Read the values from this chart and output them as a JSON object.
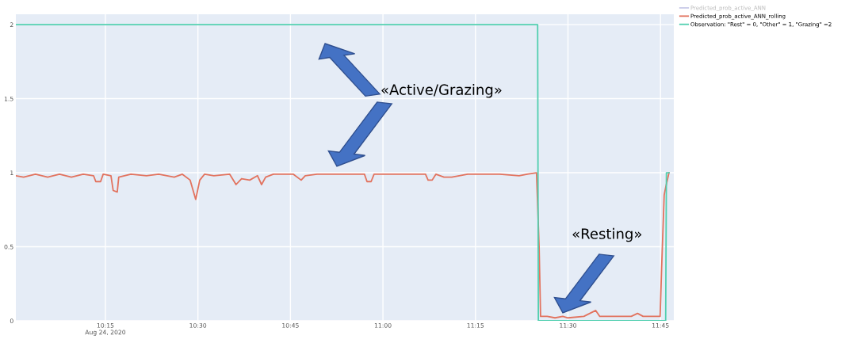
{
  "chart_data": {
    "type": "line",
    "xlim": [
      10.008,
      11.786
    ],
    "ylim": [
      0,
      2.07
    ],
    "xticks": [
      {
        "value": 10.25,
        "label": "10:15\nAug 24, 2020"
      },
      {
        "value": 10.5,
        "label": "10:30"
      },
      {
        "value": 10.75,
        "label": "10:45"
      },
      {
        "value": 11.0,
        "label": "11:00"
      },
      {
        "value": 11.25,
        "label": "11:15"
      },
      {
        "value": 11.5,
        "label": "11:30"
      },
      {
        "value": 11.75,
        "label": "11:45"
      }
    ],
    "yticks": [
      0,
      0.5,
      1,
      1.5,
      2
    ],
    "grid": true,
    "legend": "top right",
    "series": [
      {
        "name": "Predicted_prob_active_ANN",
        "color": "#c9cbe8"
      },
      {
        "name": "Predicted_prob_active_ANN_rolling",
        "color": "#e2735f",
        "x": [
          10.008,
          10.029,
          10.061,
          10.094,
          10.126,
          10.158,
          10.19,
          10.218,
          10.224,
          10.237,
          10.244,
          10.265,
          10.271,
          10.282,
          10.286,
          10.319,
          10.361,
          10.394,
          10.436,
          10.458,
          10.479,
          10.494,
          10.505,
          10.518,
          10.543,
          10.586,
          10.603,
          10.618,
          10.64,
          10.661,
          10.672,
          10.683,
          10.704,
          10.758,
          10.779,
          10.79,
          10.822,
          10.886,
          10.95,
          10.957,
          10.968,
          10.976,
          11.036,
          11.115,
          11.122,
          11.133,
          11.143,
          11.165,
          11.186,
          11.229,
          11.315,
          11.368,
          11.39,
          11.415,
          11.422,
          11.426,
          11.444,
          11.465,
          11.486,
          11.5,
          11.543,
          11.575,
          11.586,
          11.629,
          11.671,
          11.688,
          11.703,
          11.736,
          11.749,
          11.753,
          11.76,
          11.764,
          11.773
        ],
        "values": [
          0.98,
          0.97,
          0.99,
          0.97,
          0.99,
          0.97,
          0.99,
          0.98,
          0.94,
          0.94,
          0.99,
          0.98,
          0.88,
          0.87,
          0.97,
          0.99,
          0.98,
          0.99,
          0.97,
          0.99,
          0.95,
          0.82,
          0.95,
          0.99,
          0.98,
          0.99,
          0.92,
          0.96,
          0.95,
          0.98,
          0.92,
          0.97,
          0.99,
          0.99,
          0.95,
          0.98,
          0.99,
          0.99,
          0.99,
          0.94,
          0.94,
          0.99,
          0.99,
          0.99,
          0.95,
          0.95,
          0.99,
          0.97,
          0.97,
          0.99,
          0.99,
          0.98,
          0.99,
          1.0,
          0.5,
          0.03,
          0.03,
          0.02,
          0.03,
          0.02,
          0.03,
          0.07,
          0.03,
          0.03,
          0.03,
          0.05,
          0.03,
          0.03,
          0.03,
          0.35,
          0.85,
          0.9,
          1.0
        ]
      },
      {
        "name": "Observation: \"Rest\" = 0, \"Other\" = 1, \"Grazing\" =2",
        "color": "#52cfb0",
        "x": [
          10.008,
          11.418,
          11.42,
          11.764,
          11.766,
          11.773
        ],
        "values": [
          2,
          2,
          0,
          0,
          1,
          1
        ]
      }
    ],
    "annotations": [
      "«Active/Grazing»",
      "«Resting»"
    ]
  }
}
